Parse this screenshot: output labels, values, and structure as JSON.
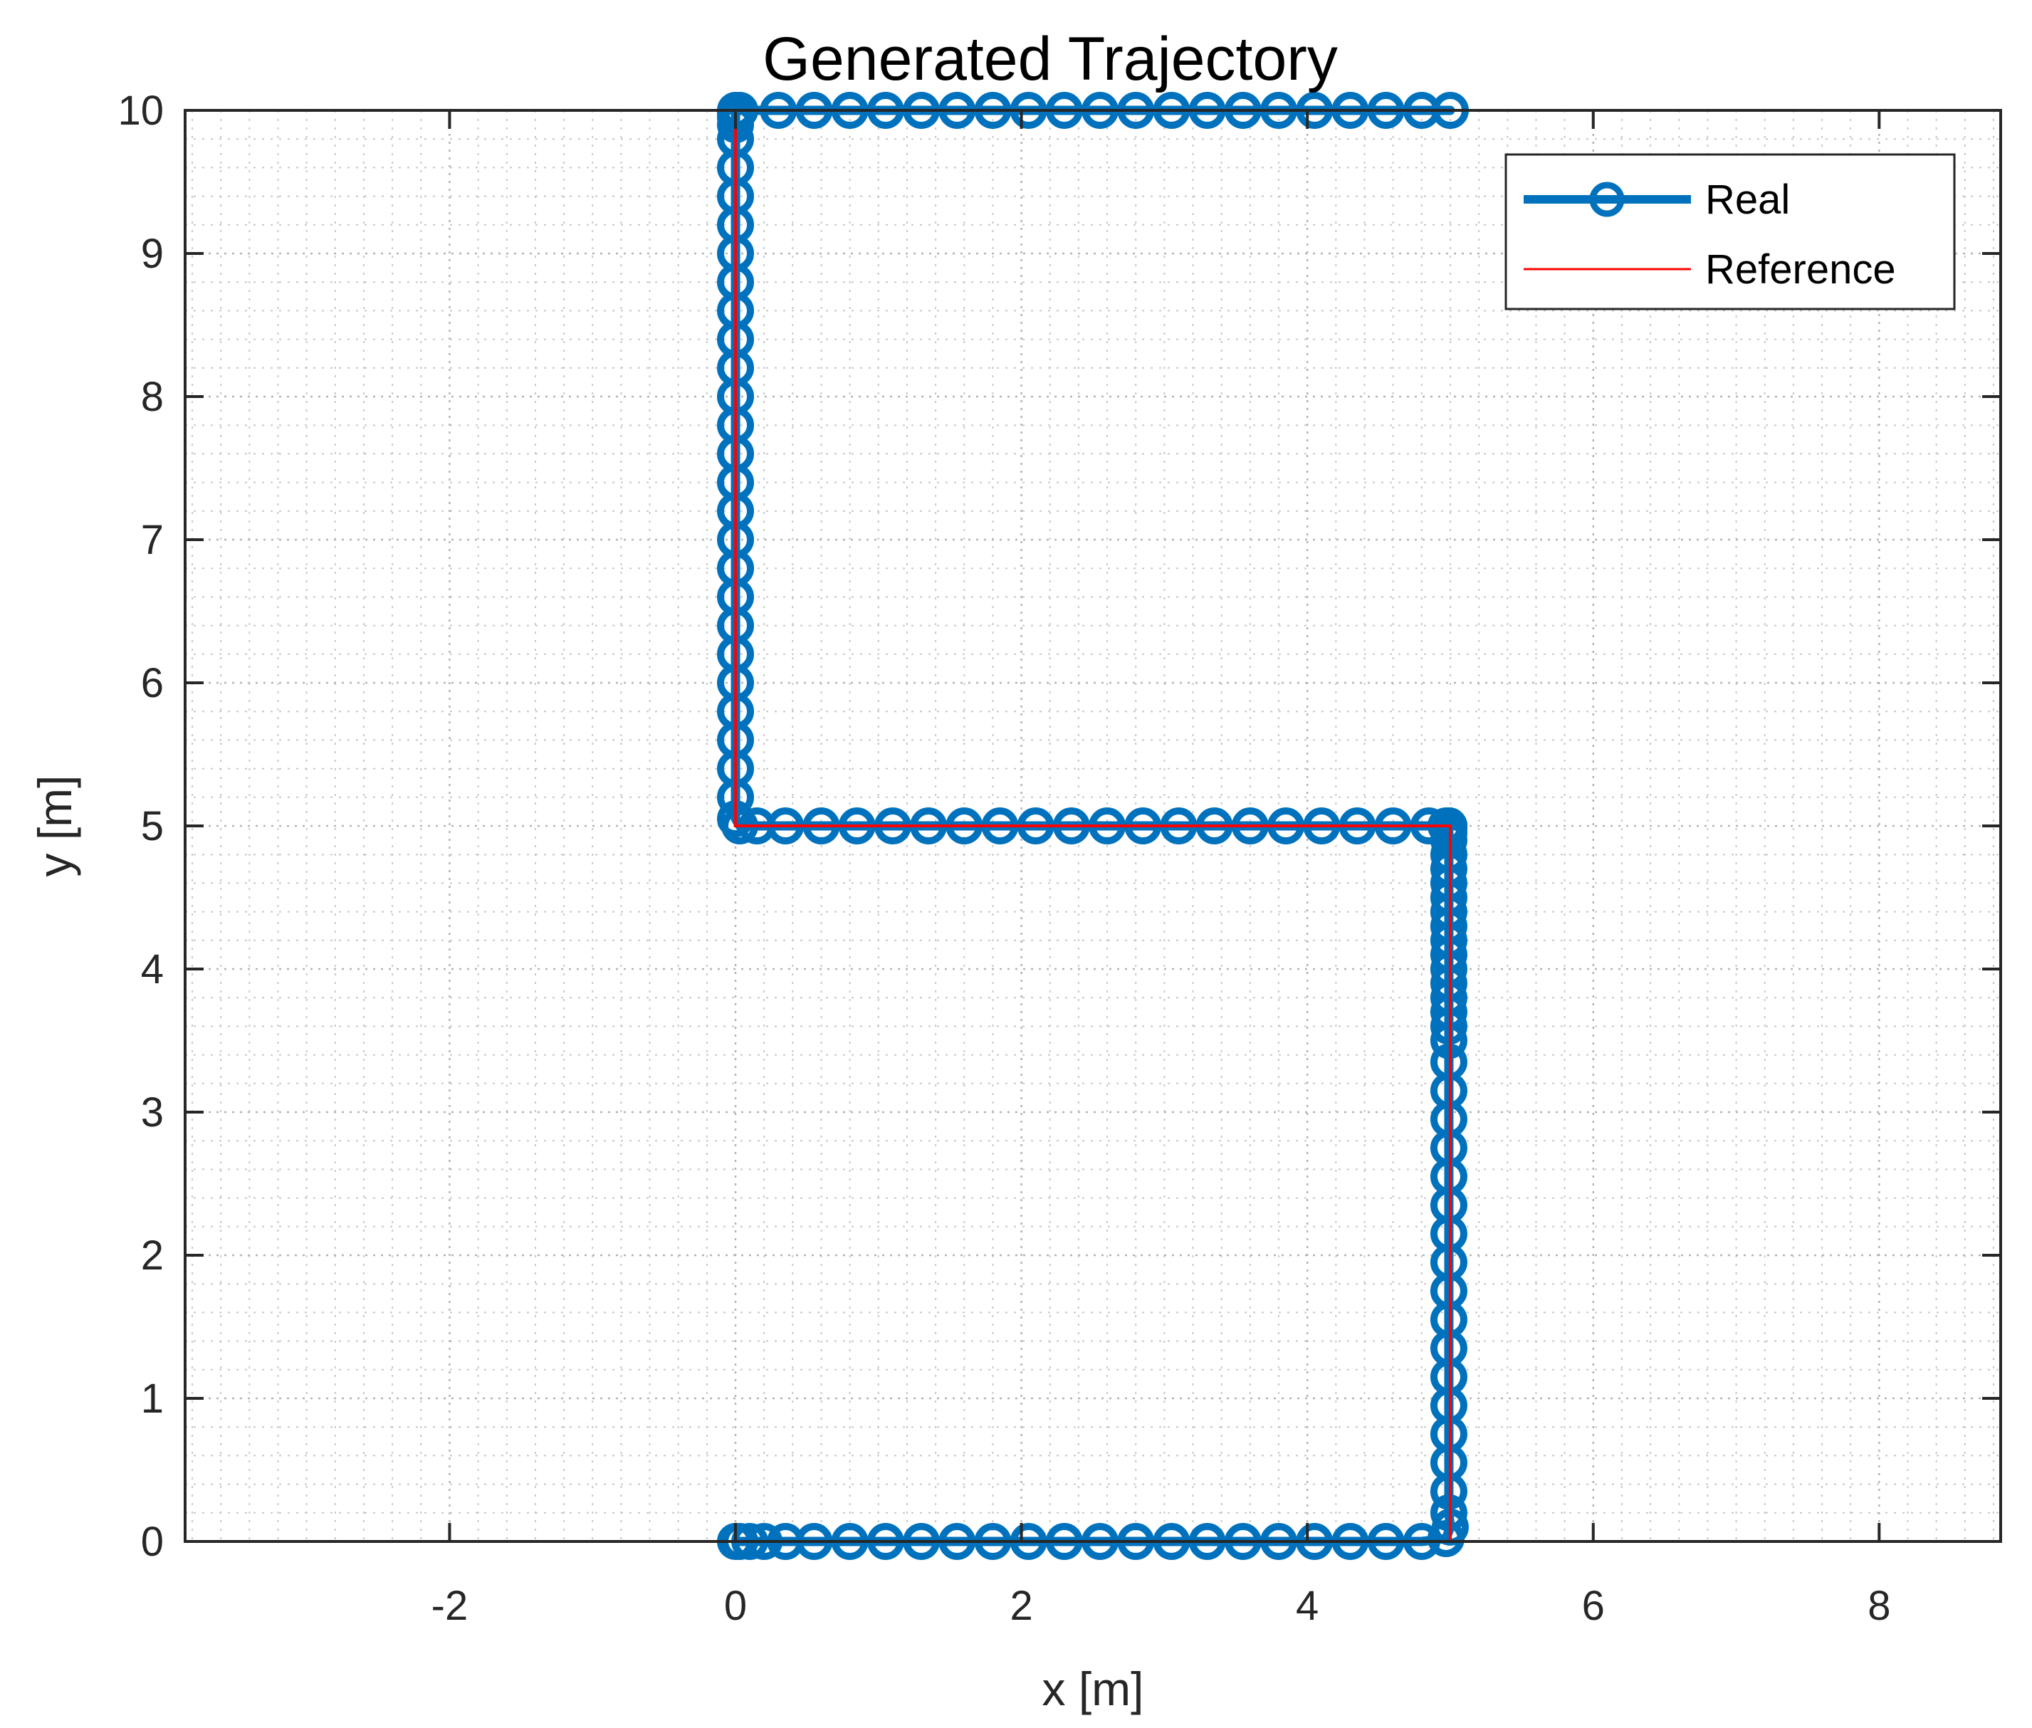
{
  "chart_data": {
    "type": "line",
    "title": "Generated Trajectory",
    "xlabel": "x [m]",
    "ylabel": "y [m]",
    "xlim": [
      -3.85,
      8.85
    ],
    "ylim": [
      0,
      10
    ],
    "xticks": [
      -2,
      0,
      2,
      4,
      6,
      8
    ],
    "xtick_labels": [
      "-2",
      "0",
      "2",
      "4",
      "6",
      "8"
    ],
    "yticks": [
      0,
      1,
      2,
      3,
      4,
      5,
      6,
      7,
      8,
      9,
      10
    ],
    "ytick_labels": [
      "0",
      "1",
      "2",
      "3",
      "4",
      "5",
      "6",
      "7",
      "8",
      "9",
      "10"
    ],
    "grid": true,
    "minor_grid": true,
    "legend_position": "top-right",
    "series": [
      {
        "name": "Real",
        "color": "#0072BD",
        "marker": "circle",
        "style": "thick line with circle markers",
        "x": [
          0,
          0.03,
          0.1,
          0.2,
          0.35,
          0.55,
          0.8,
          1.05,
          1.3,
          1.55,
          1.8,
          2.05,
          2.3,
          2.55,
          2.8,
          3.05,
          3.3,
          3.55,
          3.8,
          4.05,
          4.3,
          4.55,
          4.8,
          4.97,
          5.0,
          4.99,
          4.99,
          4.99,
          4.99,
          4.99,
          4.99,
          4.99,
          4.99,
          4.99,
          4.99,
          4.99,
          4.99,
          4.99,
          4.99,
          4.99,
          4.99,
          4.99,
          4.99,
          4.99,
          4.99,
          4.99,
          4.99,
          4.99,
          4.99,
          4.99,
          4.99,
          4.99,
          4.99,
          4.99,
          4.99,
          4.99,
          4.99,
          4.99,
          4.99,
          4.99,
          4.99,
          4.99,
          4.99,
          4.99,
          4.99,
          4.99,
          4.99,
          4.97,
          4.85,
          4.6,
          4.35,
          4.1,
          3.85,
          3.6,
          3.35,
          3.1,
          2.85,
          2.6,
          2.35,
          2.1,
          1.85,
          1.6,
          1.35,
          1.1,
          0.85,
          0.6,
          0.35,
          0.15,
          0.03,
          0,
          0,
          0,
          0,
          0,
          0,
          0,
          0,
          0,
          0,
          0,
          0,
          0,
          0,
          0,
          0,
          0,
          0,
          0,
          0,
          0,
          0,
          0,
          0,
          0,
          0,
          0,
          0,
          0,
          0.03,
          0.3,
          0.55,
          0.8,
          1.05,
          1.3,
          1.55,
          1.8,
          2.05,
          2.3,
          2.55,
          2.8,
          3.05,
          3.3,
          3.55,
          3.8,
          4.05,
          4.3,
          4.55,
          4.8,
          5.0
        ],
        "y": [
          0,
          0,
          0,
          0,
          0,
          0,
          0,
          0,
          0,
          0,
          0,
          0,
          0,
          0,
          0,
          0,
          0,
          0,
          0,
          0,
          0,
          0,
          0,
          0.02,
          0.1,
          0.2,
          0.35,
          0.55,
          0.75,
          0.95,
          1.15,
          1.35,
          1.55,
          1.75,
          1.95,
          2.15,
          2.35,
          2.55,
          2.75,
          2.95,
          3.15,
          3.35,
          3.5,
          3.6,
          3.7,
          3.8,
          3.9,
          4.0,
          4.1,
          4.2,
          4.3,
          4.4,
          4.5,
          4.6,
          4.7,
          4.8,
          4.9,
          4.95,
          4.98,
          5.0,
          5.0,
          5.0,
          5.0,
          5.0,
          5.0,
          5.0,
          5.0,
          5.0,
          5.0,
          5.0,
          5.0,
          5.0,
          5.0,
          5.0,
          5.0,
          5.0,
          5.0,
          5.0,
          5.0,
          5.0,
          5.0,
          5.0,
          5.0,
          5.0,
          5.0,
          5.0,
          5.0,
          5.0,
          5.0,
          5.05,
          5.2,
          5.4,
          5.6,
          5.8,
          6.0,
          6.2,
          6.4,
          6.6,
          6.8,
          7.0,
          7.2,
          7.4,
          7.6,
          7.8,
          8.0,
          8.2,
          8.4,
          8.6,
          8.8,
          9.0,
          9.2,
          9.4,
          9.6,
          9.8,
          9.9,
          9.95,
          9.98,
          10.0,
          10.0,
          10.0,
          10.0,
          10.0,
          10.0,
          10.0,
          10.0,
          10.0,
          10.0,
          10.0,
          10.0,
          10.0,
          10.0,
          10.0,
          10.0,
          10.0,
          10.0,
          10.0,
          10.0,
          10.0,
          10.0
        ]
      },
      {
        "name": "Reference",
        "color": "#FF0000",
        "style": "thin line",
        "x": [
          0,
          5,
          5,
          0,
          0,
          5
        ],
        "y": [
          0,
          0,
          5,
          5,
          10,
          10
        ]
      }
    ]
  }
}
